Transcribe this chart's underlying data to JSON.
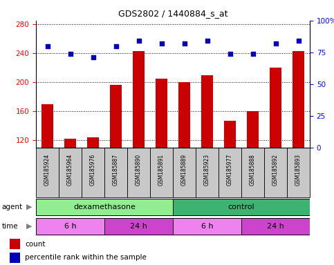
{
  "title": "GDS2802 / 1440884_s_at",
  "samples": [
    "GSM185924",
    "GSM185964",
    "GSM185976",
    "GSM185887",
    "GSM185890",
    "GSM185891",
    "GSM185889",
    "GSM185923",
    "GSM185977",
    "GSM185888",
    "GSM185892",
    "GSM185893"
  ],
  "counts": [
    170,
    122,
    124,
    197,
    243,
    205,
    200,
    210,
    147,
    160,
    220,
    243
  ],
  "percentiles": [
    80,
    74,
    71,
    80,
    84,
    82,
    82,
    84,
    74,
    74,
    82,
    84
  ],
  "ylim_left": [
    110,
    285
  ],
  "ylim_right": [
    0,
    100
  ],
  "yticks_left": [
    120,
    160,
    200,
    240,
    280
  ],
  "yticks_right": [
    0,
    25,
    50,
    75,
    100
  ],
  "agent_groups": [
    {
      "label": "dexamethasone",
      "start": 0,
      "end": 6,
      "color": "#90EE90"
    },
    {
      "label": "control",
      "start": 6,
      "end": 12,
      "color": "#3CB371"
    }
  ],
  "time_groups": [
    {
      "label": "6 h",
      "start": 0,
      "end": 3,
      "color": "#EE82EE"
    },
    {
      "label": "24 h",
      "start": 3,
      "end": 6,
      "color": "#CC44CC"
    },
    {
      "label": "6 h",
      "start": 6,
      "end": 9,
      "color": "#EE82EE"
    },
    {
      "label": "24 h",
      "start": 9,
      "end": 12,
      "color": "#CC44CC"
    }
  ],
  "bar_color": "#CC0000",
  "dot_color": "#0000BB",
  "sample_bg_color": "#C8C8C8",
  "count_legend": "count",
  "percentile_legend": "percentile rank within the sample",
  "bar_bottom": 110
}
